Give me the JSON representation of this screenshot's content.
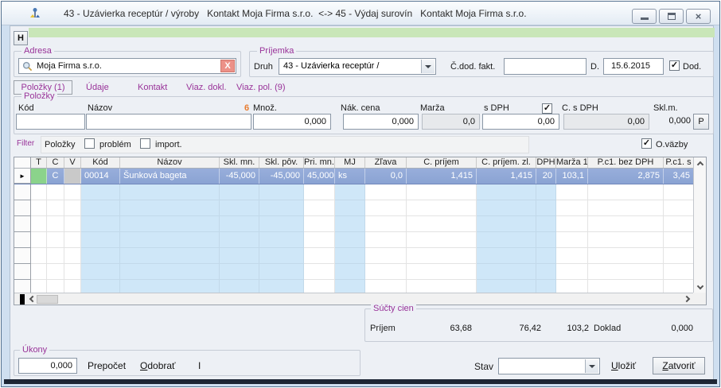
{
  "window": {
    "title": "43 - Uzávierka receptúr / výroby   Kontakt Moja Firma s.r.o.  <-> 45 - Výdaj surovín   Kontakt Moja Firma s.r.o.",
    "h_button_label": "H"
  },
  "icons": {
    "check": "✓",
    "close": "×",
    "clear_x": "X",
    "row_marker": "►"
  },
  "adresa": {
    "group_label": "Adresa",
    "value": "Moja Firma s.r.o."
  },
  "prijemka": {
    "group_label": "Príjemka",
    "druh_label": "Druh",
    "druh_value": "43 - Uzávierka receptúr /",
    "cdod_fakt_label": "Č.dod. fakt.",
    "cdod_fakt_value": "",
    "d_label": "D.",
    "date_value": "15.6.2015",
    "dod_label": "Dod."
  },
  "tabs": {
    "polozky": "Položky (1)",
    "udaje": "Údaje",
    "kontakt": "Kontakt",
    "viaz_dokl": "Viaz. dokl.",
    "viaz_pol": "Viaz. pol. (9)"
  },
  "polozky_form": {
    "group_label": "Položky",
    "kod_label": "Kód",
    "kod_value": "",
    "nazov_label": "Názov",
    "nazov_value": "",
    "row_count": "6",
    "mnoz_label": "Množ.",
    "mnoz_value": "0,000",
    "nak_cena_label": "Nák. cena",
    "nak_cena_value": "0,000",
    "marza_label": "Marža",
    "marza_value": "0,0",
    "s_dph_label": "s DPH",
    "s_dph_value": "0,00",
    "c_s_dph_label": "C. s DPH",
    "c_s_dph_value": "0,00",
    "skl_m_label": "Skl.m.",
    "skl_m_value": "0,000",
    "p_button_label": "P"
  },
  "filter": {
    "label": "Filter",
    "polozky_label": "Položky",
    "problem_label": "problém",
    "import_label": "import.",
    "ovazby_label": "O.väzby"
  },
  "table": {
    "columns": [
      {
        "label": "T",
        "width": 20,
        "align": "center",
        "blue": false
      },
      {
        "label": "C",
        "width": 22,
        "align": "center",
        "blue": false
      },
      {
        "label": "V",
        "width": 21,
        "align": "center",
        "blue": false
      },
      {
        "label": "Kód",
        "width": 49,
        "align": "left",
        "blue": true
      },
      {
        "label": "Názov",
        "width": 125,
        "align": "left",
        "blue": true
      },
      {
        "label": "Skl. mn.",
        "width": 50,
        "align": "right",
        "blue": true
      },
      {
        "label": "Skl. pôv.",
        "width": 56,
        "align": "right",
        "blue": true
      },
      {
        "label": "Pri. mn.",
        "width": 39,
        "align": "right",
        "blue": false
      },
      {
        "label": "MJ",
        "width": 38,
        "align": "left",
        "blue": true
      },
      {
        "label": "Zľava",
        "width": 52,
        "align": "right",
        "blue": false
      },
      {
        "label": "C. príjem",
        "width": 88,
        "align": "right",
        "blue": false
      },
      {
        "label": "C. príjem. zl.",
        "width": 75,
        "align": "right",
        "blue": true
      },
      {
        "label": "DPH",
        "width": 25,
        "align": "right",
        "blue": true
      },
      {
        "label": "Marža 1",
        "width": 40,
        "align": "right",
        "blue": false
      },
      {
        "label": "P.c1. bez DPH",
        "width": 95,
        "align": "right",
        "blue": false
      },
      {
        "label": "P.c1. s",
        "width": 38,
        "align": "right",
        "blue": false
      }
    ],
    "selected_row": {
      "values": [
        "",
        "C",
        "",
        "00014",
        "Šunková bageta",
        "-45,000",
        "-45,000",
        "45,000",
        "ks",
        "0,0",
        "1,415",
        "1,415",
        "20",
        "103,1",
        "2,875",
        "3,45"
      ]
    },
    "empty_row_count": 7
  },
  "sucty": {
    "group_label": "Súčty cien",
    "prijem_label": "Príjem",
    "sum1": "63,68",
    "sum2": "76,42",
    "sum3": "103,2",
    "doklad_label": "Doklad",
    "doklad_value": "0,000"
  },
  "ukony": {
    "group_label": "Úkony",
    "value": "0,000",
    "prepocet_label": "Prepočet",
    "odobrat_label": "Odobrať",
    "i_label": "I"
  },
  "footer": {
    "stav_label": "Stav",
    "stav_value": "",
    "ulozit_label": "Uložiť",
    "zatvorit_label": "Zatvoriť"
  },
  "colors": {
    "label_purple": "#993399",
    "green_bar": "#c9e6b8",
    "selected_row_top": "#98aedb",
    "selected_row_bottom": "#8aa3d3",
    "column_highlight": "#cfe7f8",
    "seq_orange": "#e87b2e",
    "clear_button": "#ec9188",
    "t_cell_green": "#8bd38b",
    "v_cell_gray": "#c9c9c9"
  }
}
